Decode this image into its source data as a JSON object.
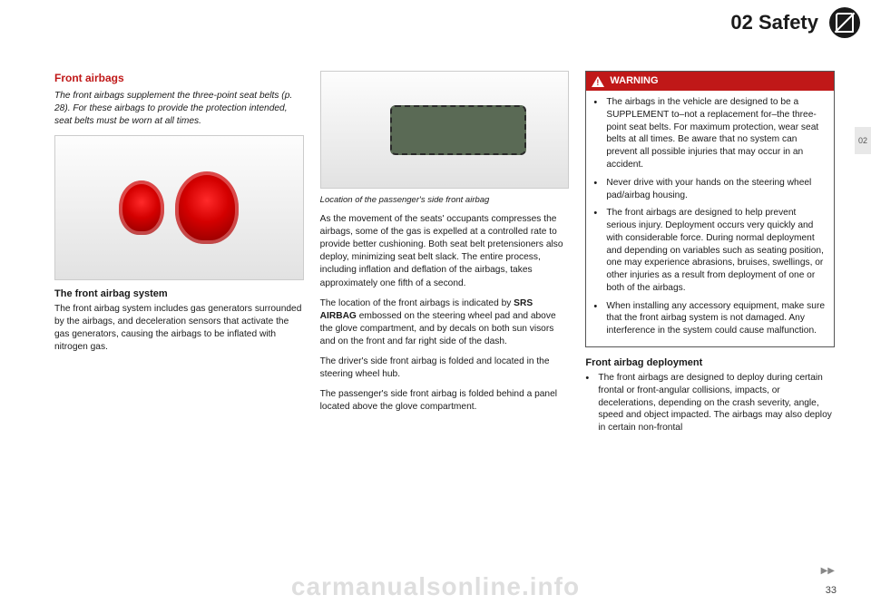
{
  "header": {
    "section": "02 Safety",
    "side_tab": "02"
  },
  "col1": {
    "title": "Front airbags",
    "intro": "The front airbags supplement the three-point seat belts (p. 28). For these airbags to provide the protection intended, seat belts must be worn at all times.",
    "sub1_title": "The front airbag system",
    "sub1_body": "The front airbag system includes gas generators surrounded by the airbags, and deceleration sensors that activate the gas generators, causing the airbags to be inflated with nitrogen gas."
  },
  "col2": {
    "caption": "Location of the passenger's side front airbag",
    "p1": "As the movement of the seats' occupants compresses the airbags, some of the gas is expelled at a controlled rate to provide better cushioning. Both seat belt pretensioners also deploy, minimizing seat belt slack. The entire process, including inflation and deflation of the airbags, takes approximately one fifth of a second.",
    "p2a": "The location of the front airbags is indicated by ",
    "p2b": "SRS AIRBAG",
    "p2c": " embossed on the steering wheel pad and above the glove compartment, and by decals on both sun visors and on the front and far right side of the dash.",
    "p3": "The driver's side front airbag is folded and located in the steering wheel hub.",
    "p4": "The passenger's side front airbag is folded behind a panel located above the glove compartment."
  },
  "col3": {
    "warn_head": "WARNING",
    "warn_items": [
      "The airbags in the vehicle are designed to be a SUPPLEMENT to–not a replacement for–the three-point seat belts. For maximum protection, wear seat belts at all times. Be aware that no system can prevent all possible injuries that may occur in an accident.",
      "Never drive with your hands on the steering wheel pad/airbag housing.",
      "The front airbags are designed to help prevent serious injury. Deployment occurs very quickly and with considerable force. During normal deployment and depending on variables such as seating position, one may experience abrasions, bruises, swellings, or other injuries as a result from deployment of one or both of the airbags.",
      "When installing any accessory equipment, make sure that the front airbag system is not damaged. Any interference in the system could cause malfunction."
    ],
    "deploy_title": "Front airbag deployment",
    "deploy_item": "The front airbags are designed to deploy during certain frontal or front-angular collisions, impacts, or decelerations, depending on the crash severity, angle, speed and object impacted. The airbags may also deploy in certain non-frontal"
  },
  "footer": {
    "watermark": "carmanualsonline.info",
    "page": "33",
    "cont": "▶▶"
  }
}
